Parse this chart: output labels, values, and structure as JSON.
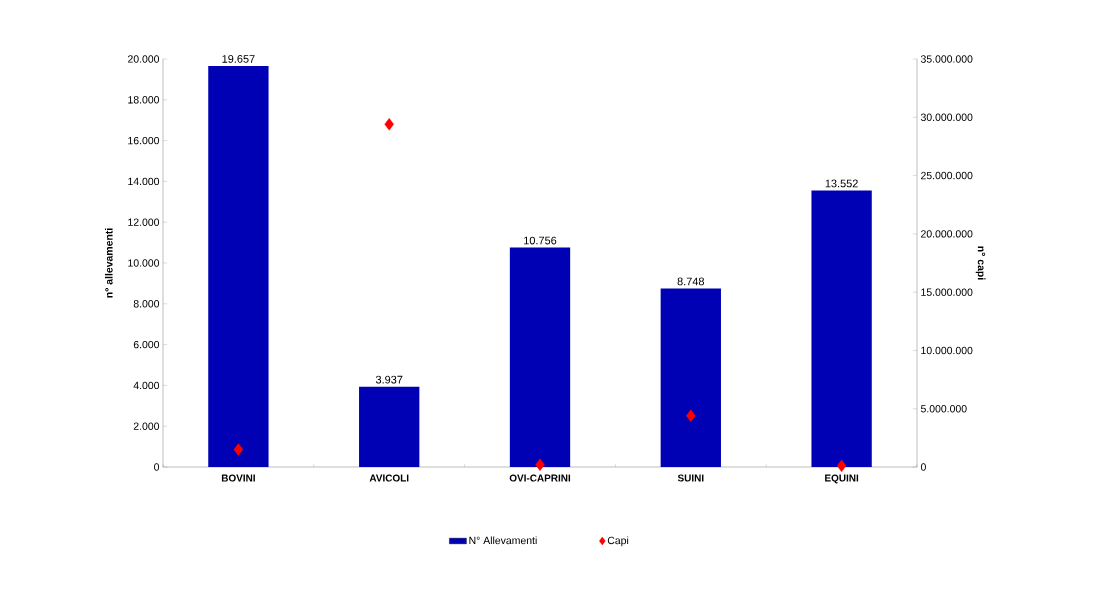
{
  "chart_data": {
    "type": "bar",
    "categories": [
      "BOVINI",
      "AVICOLI",
      "OVI-CAPRINI",
      "SUINI",
      "EQUINI"
    ],
    "ylabel": "n° allevamenti",
    "y2label": "n° capi",
    "series": [
      {
        "name": "N° Allevamenti",
        "color": "#0000b4",
        "values": [
          19657,
          3937,
          10756,
          8748,
          13552
        ],
        "value_labels": [
          "19.657",
          "3.937",
          "10.756",
          "8.748",
          "13.552"
        ]
      },
      {
        "name": "Capi",
        "type": "scatter",
        "axis": "y2",
        "color": "#ff0000",
        "values": [
          1500000,
          29400000,
          200000,
          4400000,
          100000
        ]
      }
    ],
    "ylim": [
      0,
      20000
    ],
    "yticks": [
      {
        "value": 0,
        "label": "0"
      },
      {
        "value": 2000,
        "label": "2.000"
      },
      {
        "value": 4000,
        "label": "4.000"
      },
      {
        "value": 6000,
        "label": "6.000"
      },
      {
        "value": 8000,
        "label": "8.000"
      },
      {
        "value": 10000,
        "label": "10.000"
      },
      {
        "value": 12000,
        "label": "12.000"
      },
      {
        "value": 14000,
        "label": "14.000"
      },
      {
        "value": 16000,
        "label": "16.000"
      },
      {
        "value": 18000,
        "label": "18.000"
      },
      {
        "value": 20000,
        "label": "20.000"
      }
    ],
    "y2lim": [
      0,
      35000000
    ],
    "y2ticks": [
      {
        "value": 0,
        "label": "0"
      },
      {
        "value": 5000000,
        "label": "5.000.000"
      },
      {
        "value": 10000000,
        "label": "10.000.000"
      },
      {
        "value": 15000000,
        "label": "15.000.000"
      },
      {
        "value": 20000000,
        "label": "20.000.000"
      },
      {
        "value": 25000000,
        "label": "25.000.000"
      },
      {
        "value": 30000000,
        "label": "30.000.000"
      },
      {
        "value": 35000000,
        "label": "35.000.000"
      }
    ],
    "legend": "bottom",
    "marker": "diamond",
    "grid": false
  }
}
